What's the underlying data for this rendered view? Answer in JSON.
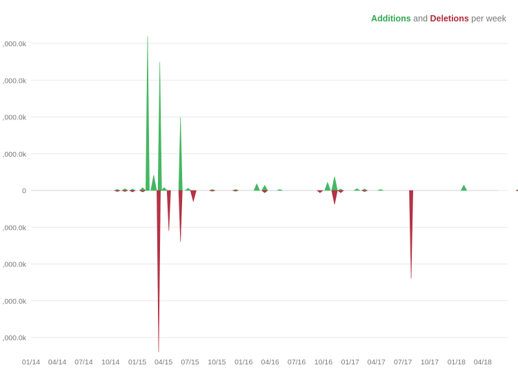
{
  "legend": {
    "additions": "Additions",
    "and": "and",
    "deletions": "Deletions",
    "suffix": "per week"
  },
  "chart_data": {
    "type": "area",
    "title": "Additions and Deletions per week",
    "xlabel": "",
    "ylabel": "",
    "grid": true,
    "legend_position": "top-right",
    "ylim": [
      -4400,
      4400
    ],
    "yticks": [
      4000,
      3000,
      2000,
      1000,
      0,
      -1000,
      -2000,
      -3000,
      -4000
    ],
    "ytick_labels": [
      ",000.0k",
      ",000.0k",
      ",000.0k",
      ",000.0k",
      "0",
      ",000.0k",
      ",000.0k",
      ",000.0k",
      ",000.0k"
    ],
    "xlim": [
      "2014-01-01",
      "2018-08-31"
    ],
    "xticks": [
      "2014-01-01",
      "2014-04-01",
      "2014-07-01",
      "2014-10-01",
      "2015-01-01",
      "2015-04-01",
      "2015-07-01",
      "2015-10-01",
      "2016-01-01",
      "2016-04-01",
      "2016-07-01",
      "2016-10-01",
      "2017-01-01",
      "2017-04-01",
      "2017-07-01",
      "2017-10-01",
      "2018-01-01",
      "2018-04-01"
    ],
    "xtick_labels": [
      "01/14",
      "04/14",
      "07/14",
      "10/14",
      "01/15",
      "04/15",
      "07/15",
      "10/15",
      "01/16",
      "04/16",
      "07/16",
      "10/16",
      "01/17",
      "04/17",
      "07/17",
      "10/17",
      "01/18",
      "04/18"
    ],
    "colors": {
      "additions": "#3ab45a",
      "deletions": "#b0283a"
    },
    "series": [
      {
        "name": "Additions",
        "color": "#3ab45a",
        "points": [
          [
            "2014-10-10",
            30
          ],
          [
            "2014-11-05",
            50
          ],
          [
            "2014-12-01",
            40
          ],
          [
            "2015-01-05",
            80
          ],
          [
            "2015-01-22",
            4200
          ],
          [
            "2015-02-12",
            420
          ],
          [
            "2015-03-05",
            3500
          ],
          [
            "2015-03-20",
            80
          ],
          [
            "2015-05-15",
            2000
          ],
          [
            "2015-06-10",
            60
          ],
          [
            "2015-09-01",
            30
          ],
          [
            "2015-11-20",
            30
          ],
          [
            "2016-02-01",
            180
          ],
          [
            "2016-02-28",
            140
          ],
          [
            "2016-04-20",
            30
          ],
          [
            "2016-10-01",
            220
          ],
          [
            "2016-10-25",
            380
          ],
          [
            "2016-11-15",
            40
          ],
          [
            "2017-01-10",
            50
          ],
          [
            "2017-02-05",
            40
          ],
          [
            "2017-04-01",
            30
          ],
          [
            "2018-01-12",
            150
          ],
          [
            "2018-07-20",
            40
          ]
        ]
      },
      {
        "name": "Deletions",
        "color": "#b0283a",
        "points": [
          [
            "2014-10-10",
            -30
          ],
          [
            "2014-11-05",
            -30
          ],
          [
            "2014-12-01",
            -40
          ],
          [
            "2015-01-05",
            -40
          ],
          [
            "2015-03-01",
            -4400
          ],
          [
            "2015-04-05",
            -1100
          ],
          [
            "2015-05-15",
            -1400
          ],
          [
            "2015-06-28",
            -300
          ],
          [
            "2015-09-01",
            -20
          ],
          [
            "2015-11-20",
            -20
          ],
          [
            "2016-02-28",
            -60
          ],
          [
            "2016-09-05",
            -60
          ],
          [
            "2016-10-25",
            -380
          ],
          [
            "2016-11-15",
            -60
          ],
          [
            "2017-02-05",
            -30
          ],
          [
            "2017-07-15",
            -2400
          ],
          [
            "2018-07-20",
            -20
          ]
        ]
      }
    ]
  }
}
